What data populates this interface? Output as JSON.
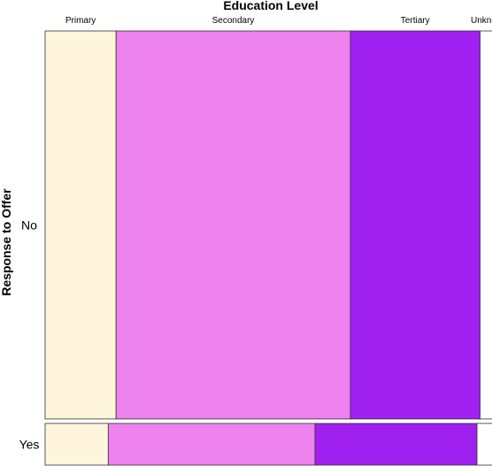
{
  "chart_data": {
    "type": "mosaic",
    "title": "",
    "xlabel": "Education Level",
    "ylabel": "Response to Offer",
    "x_categories": [
      "Primary",
      "Secondary",
      "Tertiary",
      "Unknown"
    ],
    "y_categories": [
      "No",
      "Yes"
    ],
    "colors": {
      "Primary": "#FFF5DC",
      "Secondary": "#EE82EE",
      "Tertiary": "#A020F0",
      "Unknown": "#FFFFFF"
    },
    "row_proportions": {
      "No": 0.903,
      "Yes": 0.097
    },
    "cells": [
      {
        "response": "No",
        "shares": [
          0.163,
          0.538,
          0.298,
          0.042
        ]
      },
      {
        "response": "Yes",
        "shares": [
          0.145,
          0.475,
          0.372,
          0.037
        ]
      }
    ],
    "legend": "none",
    "grid": false
  }
}
